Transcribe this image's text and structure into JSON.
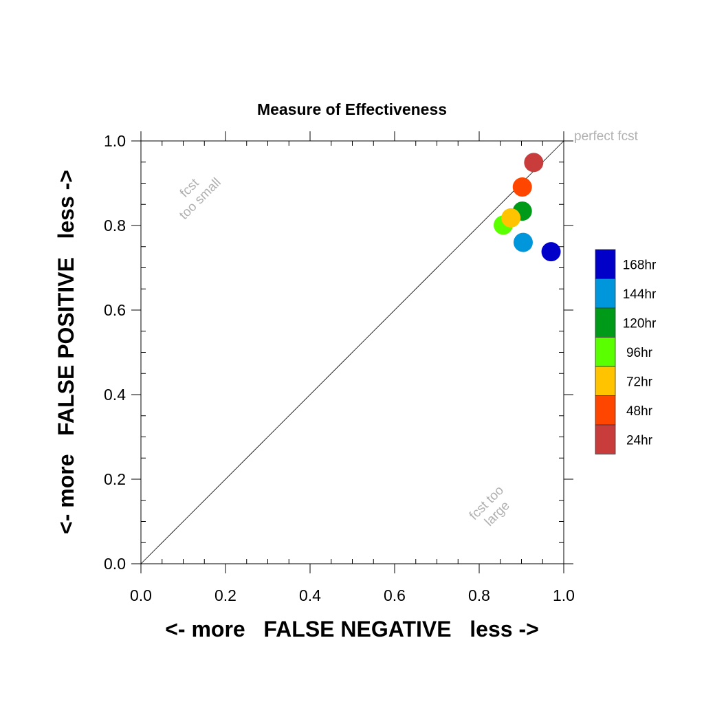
{
  "chart_data": {
    "type": "scatter",
    "title": "Measure of Effectiveness",
    "xlabel": "<- more   FALSE NEGATIVE   less ->",
    "ylabel": "<- more   FALSE POSITIVE   less ->",
    "xlim": [
      0.0,
      1.0
    ],
    "ylim": [
      0.0,
      1.0
    ],
    "x_ticks": [
      "0.0",
      "0.2",
      "0.4",
      "0.6",
      "0.8",
      "1.0"
    ],
    "y_ticks": [
      "0.0",
      "0.2",
      "0.4",
      "0.6",
      "0.8",
      "1.0"
    ],
    "grid": false,
    "legend_placement": "right",
    "diagonal_line": true,
    "annotations": {
      "top_right": "perfect fcst",
      "upper_left_line1": "fcst",
      "upper_left_line2": "too small",
      "lower_right_line1": "fcst too",
      "lower_right_line2": "large"
    },
    "series": [
      {
        "name": "168hr",
        "color": "#0000c8",
        "x": 0.97,
        "y": 0.738
      },
      {
        "name": "144hr",
        "color": "#0096dc",
        "x": 0.904,
        "y": 0.76
      },
      {
        "name": "120hr",
        "color": "#009a19",
        "x": 0.902,
        "y": 0.834
      },
      {
        "name": "96hr",
        "color": "#5aff00",
        "x": 0.857,
        "y": 0.801
      },
      {
        "name": "72hr",
        "color": "#ffc300",
        "x": 0.875,
        "y": 0.818
      },
      {
        "name": "48hr",
        "color": "#ff4600",
        "x": 0.902,
        "y": 0.891
      },
      {
        "name": "24hr",
        "color": "#c83c3c",
        "x": 0.929,
        "y": 0.949
      }
    ]
  }
}
